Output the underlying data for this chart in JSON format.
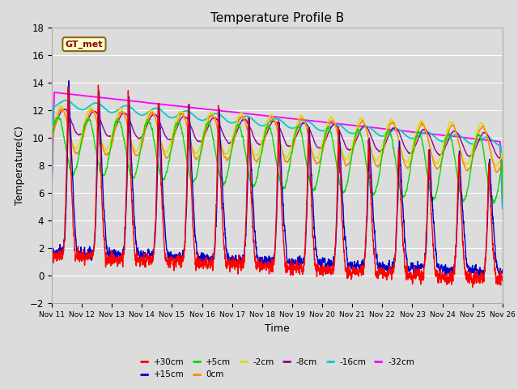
{
  "title": "Temperature Profile B",
  "xlabel": "Time",
  "ylabel": "Temperature(C)",
  "ylim": [
    -2,
    18
  ],
  "xlim": [
    0,
    360
  ],
  "plot_bg_color": "#dcdcdc",
  "fig_bg_color": "#dcdcdc",
  "grid_color": "#ffffff",
  "series_colors": {
    "+30cm": "#ff0000",
    "+15cm": "#0000cc",
    "+5cm": "#00dd00",
    "0cm": "#ff8800",
    "-2cm": "#dddd00",
    "-8cm": "#990099",
    "-16cm": "#00cccc",
    "-32cm": "#ff00ff"
  },
  "x_ticks": [
    0,
    24,
    48,
    72,
    96,
    120,
    144,
    168,
    192,
    216,
    240,
    264,
    288,
    312,
    336,
    360
  ],
  "x_tick_labels": [
    "Nov 11",
    "Nov 12",
    "Nov 13",
    "Nov 14",
    "Nov 15",
    "Nov 16",
    "Nov 17",
    "Nov 18",
    "Nov 19",
    "Nov 20",
    "Nov 21",
    "Nov 22",
    "Nov 23",
    "Nov 24",
    "Nov 25",
    "Nov 26"
  ],
  "annotation_text": "GT_met",
  "legend_labels": [
    "+30cm",
    "+15cm",
    "+5cm",
    "0cm",
    "-2cm",
    "-8cm",
    "-16cm",
    "-32cm"
  ]
}
